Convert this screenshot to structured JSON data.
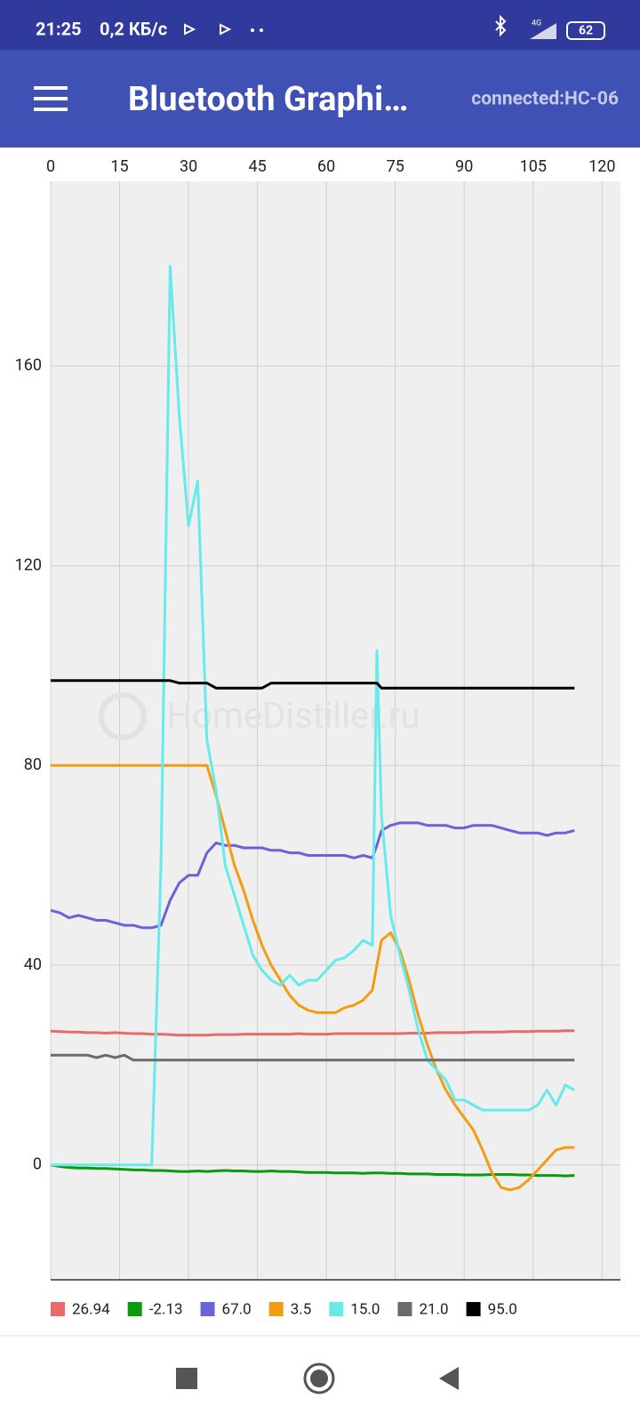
{
  "status_bar": {
    "time": "21:25",
    "speed": "0,2 КБ/с",
    "network": "4G",
    "battery": "62"
  },
  "app_bar": {
    "title": "Bluetooth Graphi…",
    "connection": "connected:HC-06"
  },
  "watermark": "HomeDistiller.ru",
  "chart_data": {
    "type": "line",
    "x": [
      0,
      2,
      4,
      6,
      8,
      10,
      12,
      14,
      16,
      18,
      20,
      22,
      24,
      26,
      28,
      30,
      32,
      34,
      36,
      38,
      40,
      42,
      44,
      46,
      48,
      50,
      52,
      54,
      56,
      58,
      60,
      62,
      64,
      66,
      68,
      70,
      71,
      72,
      74,
      76,
      78,
      80,
      82,
      84,
      86,
      88,
      90,
      92,
      94,
      96,
      98,
      100,
      102,
      104,
      106,
      108,
      110,
      112,
      114
    ],
    "xlim": [
      0,
      124
    ],
    "xticks": [
      0,
      15,
      30,
      45,
      60,
      75,
      90,
      105,
      120
    ],
    "ylim": [
      -23,
      197
    ],
    "yticks": [
      0,
      40,
      80,
      120,
      160
    ],
    "grid": true,
    "legend": "bottom",
    "series": [
      {
        "name": "26.94",
        "color": "#e86a6a",
        "values": [
          26.8,
          26.7,
          26.6,
          26.6,
          26.5,
          26.5,
          26.4,
          26.5,
          26.4,
          26.3,
          26.3,
          26.2,
          26.2,
          26.1,
          26,
          26,
          26,
          26,
          26.1,
          26.1,
          26.1,
          26.2,
          26.2,
          26.2,
          26.2,
          26.2,
          26.2,
          26.3,
          26.2,
          26.2,
          26.2,
          26.3,
          26.3,
          26.3,
          26.3,
          26.3,
          26.3,
          26.3,
          26.3,
          26.3,
          26.4,
          26.4,
          26.4,
          26.5,
          26.5,
          26.5,
          26.5,
          26.6,
          26.6,
          26.6,
          26.6,
          26.7,
          26.7,
          26.7,
          26.8,
          26.8,
          26.8,
          26.9,
          26.9
        ]
      },
      {
        "name": "-2.13",
        "color": "#0a9a0a",
        "values": [
          0,
          -0.3,
          -0.5,
          -0.6,
          -0.6,
          -0.7,
          -0.7,
          -0.8,
          -0.9,
          -1,
          -1,
          -1.1,
          -1.1,
          -1.2,
          -1.3,
          -1.3,
          -1.2,
          -1.3,
          -1.2,
          -1.1,
          -1.2,
          -1.2,
          -1.3,
          -1.3,
          -1.2,
          -1.3,
          -1.3,
          -1.4,
          -1.5,
          -1.5,
          -1.5,
          -1.6,
          -1.6,
          -1.6,
          -1.7,
          -1.6,
          -1.6,
          -1.6,
          -1.7,
          -1.7,
          -1.8,
          -1.8,
          -1.8,
          -1.9,
          -1.9,
          -1.9,
          -2,
          -2,
          -2,
          -1.9,
          -1.9,
          -1.9,
          -2,
          -2,
          -2.1,
          -2.1,
          -2.1,
          -2.2,
          -2.1
        ]
      },
      {
        "name": "67.0",
        "color": "#6a62d8",
        "values": [
          51,
          50.5,
          49.5,
          50,
          49.5,
          49,
          49,
          48.5,
          48,
          48,
          47.5,
          47.5,
          48,
          53,
          56.5,
          58,
          58,
          62.5,
          64.5,
          64,
          64,
          63.5,
          63.5,
          63.5,
          63,
          63,
          62.5,
          62.5,
          62,
          62,
          62,
          62,
          62,
          61.5,
          62,
          61.5,
          64,
          67,
          68,
          68.5,
          68.5,
          68.5,
          68,
          68,
          68,
          67.5,
          67.5,
          68,
          68,
          68,
          67.5,
          67,
          66.5,
          66.5,
          66.5,
          66,
          66.5,
          66.5,
          67
        ]
      },
      {
        "name": "3.5",
        "color": "#f39c12",
        "values": [
          80,
          80,
          80,
          80,
          80,
          80,
          80,
          80,
          80,
          80,
          80,
          80,
          80,
          80,
          80,
          80,
          80,
          80,
          74,
          67,
          60,
          55,
          49,
          44,
          40,
          37,
          34,
          32,
          31,
          30.5,
          30.5,
          30.5,
          31.5,
          32,
          33,
          35,
          40,
          45,
          46.5,
          43,
          37,
          30,
          24,
          19,
          15,
          12,
          9.5,
          7,
          3,
          -1.5,
          -4.5,
          -5,
          -4.5,
          -3,
          -1,
          1,
          3,
          3.5,
          3.5
        ]
      },
      {
        "name": "15.0",
        "color": "#66eaea",
        "values": [
          0,
          0,
          0,
          0,
          0,
          0,
          0,
          0,
          0,
          0,
          0,
          0,
          60,
          180,
          150,
          128,
          137,
          85,
          75,
          60,
          54,
          48,
          42,
          39,
          37,
          36,
          38,
          36,
          37,
          37,
          39,
          41,
          41.5,
          43,
          45,
          44,
          103,
          70,
          50,
          42,
          35,
          27,
          21,
          19,
          17,
          13,
          13,
          12,
          11,
          11,
          11,
          11,
          11,
          11,
          12,
          15,
          12,
          16,
          15
        ]
      },
      {
        "name": "21.0",
        "color": "#6b6b6b",
        "values": [
          22,
          22,
          22,
          22,
          22,
          21.5,
          22,
          21.5,
          22,
          21,
          21,
          21,
          21,
          21,
          21,
          21,
          21,
          21,
          21,
          21,
          21,
          21,
          21,
          21,
          21,
          21,
          21,
          21,
          21,
          21,
          21,
          21,
          21,
          21,
          21,
          21,
          21,
          21,
          21,
          21,
          21,
          21,
          21,
          21,
          21,
          21,
          21,
          21,
          21,
          21,
          21,
          21,
          21,
          21,
          21,
          21,
          21,
          21,
          21
        ]
      },
      {
        "name": "95.0",
        "color": "#000000",
        "values": [
          97,
          97,
          97,
          97,
          97,
          97,
          97,
          97,
          97,
          97,
          97,
          97,
          97,
          97,
          96.5,
          96.5,
          96.5,
          96.5,
          95.5,
          95.5,
          95.5,
          95.5,
          95.5,
          95.5,
          96.5,
          96.5,
          96.5,
          96.5,
          96.5,
          96.5,
          96.5,
          96.5,
          96.5,
          96.5,
          96.5,
          96.5,
          96.5,
          95.5,
          95.5,
          95.5,
          95.5,
          95.5,
          95.5,
          95.5,
          95.5,
          95.5,
          95.5,
          95.5,
          95.5,
          95.5,
          95.5,
          95.5,
          95.5,
          95.5,
          95.5,
          95.5,
          95.5,
          95.5,
          95.5
        ]
      }
    ]
  }
}
